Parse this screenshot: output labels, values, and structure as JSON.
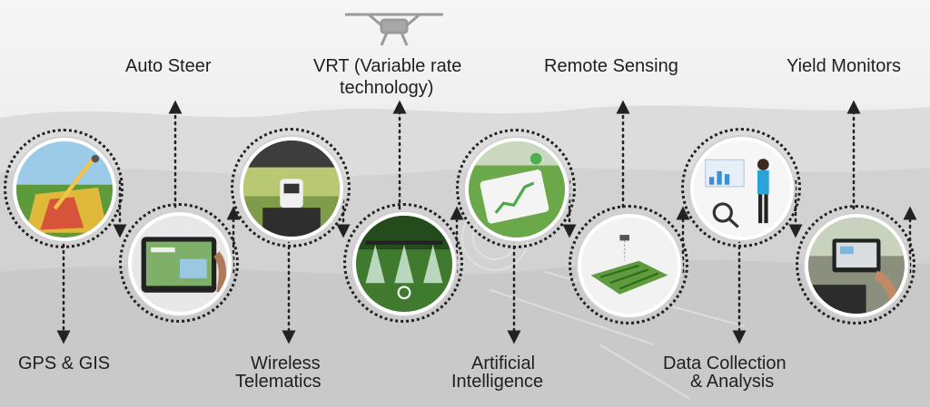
{
  "labels": {
    "auto_steer": "Auto Steer",
    "vrt_line1": "VRT (Variable rate",
    "vrt_line2": "technology)",
    "remote_sensing": "Remote Sensing",
    "yield_monitors": "Yield Monitors",
    "gps_gis": "GPS & GIS",
    "wireless_line1": "Wireless",
    "wireless_line2": "Telematics",
    "ai_line1": "Artificial",
    "ai_line2": "Intelligence",
    "data_line1": "Data Collection",
    "data_line2": "& Analysis"
  },
  "icons": [
    "drone-icon",
    "gps-field-map-image",
    "tablet-display-image",
    "tractor-cab-image",
    "crop-sprayer-image",
    "ai-tablet-image",
    "satellite-field-image",
    "data-analyst-image",
    "yield-monitor-image"
  ],
  "colors": {
    "background": "#ececec",
    "text": "#1f1f1f",
    "connector": "#222222",
    "field_green": "#5d9a3a",
    "sky_blue": "#9ccbe8"
  }
}
